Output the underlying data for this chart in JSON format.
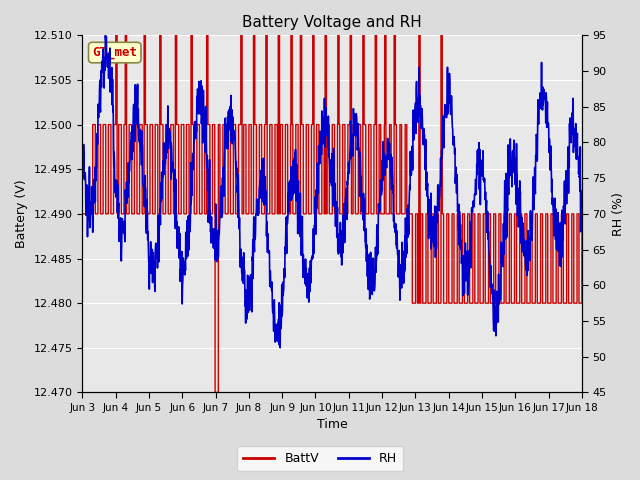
{
  "title": "Battery Voltage and RH",
  "xlabel": "Time",
  "ylabel_left": "Battery (V)",
  "ylabel_right": "RH (%)",
  "ylim_left": [
    12.47,
    12.51
  ],
  "ylim_right": [
    45,
    95
  ],
  "yticks_left": [
    12.47,
    12.475,
    12.48,
    12.485,
    12.49,
    12.495,
    12.5,
    12.505,
    12.51
  ],
  "yticks_right": [
    45,
    50,
    55,
    60,
    65,
    70,
    75,
    80,
    85,
    90,
    95
  ],
  "x_tick_labels": [
    "Jun 3",
    "Jun 4",
    "Jun 5",
    "Jun 6",
    "Jun 7",
    "Jun 8",
    "Jun 9",
    "Jun 10",
    "Jun 11",
    "Jun 12",
    "Jun 13",
    "Jun 14",
    "Jun 15",
    "Jun 16",
    "Jun 17",
    "Jun 18"
  ],
  "background_color": "#dcdcdc",
  "plot_bg_color": "#e8e8e8",
  "grid_color": "#ffffff",
  "battv_color": "#cc0000",
  "rh_color": "#0000cc",
  "legend_battv": "BattV",
  "legend_rh": "RH",
  "watermark": "GT_met",
  "watermark_bg": "#ffffcc",
  "watermark_border": "#888844",
  "watermark_color": "#cc0000",
  "figsize": [
    6.4,
    4.8
  ],
  "dpi": 100
}
